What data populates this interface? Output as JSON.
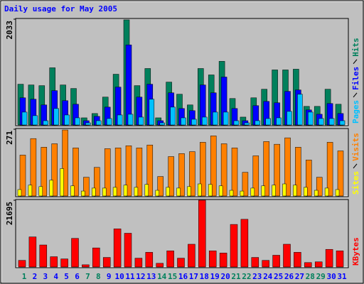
{
  "chart_data": [
    {
      "type": "bar",
      "title": "Daily usage for May 2005",
      "ylim": [
        0,
        2033
      ],
      "yticks": [
        2033
      ],
      "series": [
        {
          "name": "Hits",
          "color": "#00805c",
          "values": [
            783,
            769,
            756,
            1099,
            769,
            701,
            137,
            220,
            536,
            975,
            2020,
            756,
            1085,
            137,
            824,
            591,
            385,
            1085,
            962,
            1223,
            508,
            151,
            522,
            687,
            1058,
            1058,
            1072,
            357,
            357,
            687,
            398
          ]
        },
        {
          "name": "Files",
          "color": "#0000ff",
          "values": [
            522,
            495,
            385,
            660,
            467,
            398,
            82,
            165,
            343,
            728,
            1539,
            536,
            783,
            82,
            618,
            316,
            275,
            769,
            618,
            921,
            316,
            82,
            371,
            453,
            426,
            646,
            673,
            289,
            206,
            412,
            220
          ]
        },
        {
          "name": "Pages",
          "color": "#00c0ff",
          "values": [
            247,
            179,
            82,
            316,
            192,
            137,
            41,
            82,
            124,
            192,
            206,
            151,
            495,
            41,
            343,
            137,
            110,
            151,
            247,
            247,
            82,
            41,
            82,
            124,
            137,
            261,
            591,
            247,
            124,
            124,
            82
          ]
        }
      ]
    },
    {
      "type": "bar",
      "ylim": [
        0,
        271
      ],
      "yticks": [
        271
      ],
      "series": [
        {
          "name": "Visits",
          "color": "#ff8000",
          "values": [
            166,
            233,
            198,
            212,
            268,
            195,
            76,
            116,
            192,
            195,
            204,
            195,
            207,
            79,
            160,
            172,
            180,
            218,
            244,
            212,
            195,
            96,
            163,
            221,
            210,
            236,
            198,
            146,
            76,
            218,
            183
          ]
        },
        {
          "name": "Sites",
          "color": "#ffff00",
          "values": [
            26,
            44,
            38,
            64,
            111,
            41,
            20,
            32,
            32,
            35,
            44,
            35,
            47,
            23,
            35,
            32,
            38,
            49,
            47,
            41,
            23,
            20,
            32,
            41,
            44,
            49,
            44,
            35,
            23,
            32,
            26
          ]
        }
      ]
    },
    {
      "type": "bar",
      "ylim": [
        0,
        21695
      ],
      "yticks": [
        21695
      ],
      "categories": [
        "1",
        "2",
        "3",
        "4",
        "5",
        "6",
        "7",
        "8",
        "9",
        "10",
        "11",
        "12",
        "13",
        "14",
        "15",
        "16",
        "17",
        "18",
        "19",
        "20",
        "21",
        "22",
        "23",
        "24",
        "25",
        "26",
        "27",
        "28",
        "29",
        "30",
        "31"
      ],
      "category_colors": [
        "#00805c",
        "#0000ff",
        "#0000ff",
        "#0000ff",
        "#0000ff",
        "#0000ff",
        "#00805c",
        "#00805c",
        "#0000ff",
        "#0000ff",
        "#0000ff",
        "#0000ff",
        "#0000ff",
        "#00805c",
        "#00805c",
        "#0000ff",
        "#0000ff",
        "#0000ff",
        "#0000ff",
        "#0000ff",
        "#00805c",
        "#00805c",
        "#0000ff",
        "#0000ff",
        "#0000ff",
        "#0000ff",
        "#0000ff",
        "#00805c",
        "#00805c",
        "#0000ff",
        "#0000ff"
      ],
      "series": [
        {
          "name": "KBytes",
          "color": "#ff0000",
          "values": [
            2146,
            9774,
            7152,
            3338,
            2622,
            9298,
            715,
            6198,
            3099,
            12397,
            10966,
            2861,
            4768,
            1192,
            5245,
            2861,
            7390,
            21695,
            5245,
            4530,
            13827,
            15496,
            3099,
            2146,
            3814,
            7390,
            4768,
            1430,
            1669,
            5722,
            5245
          ]
        }
      ]
    }
  ]
}
